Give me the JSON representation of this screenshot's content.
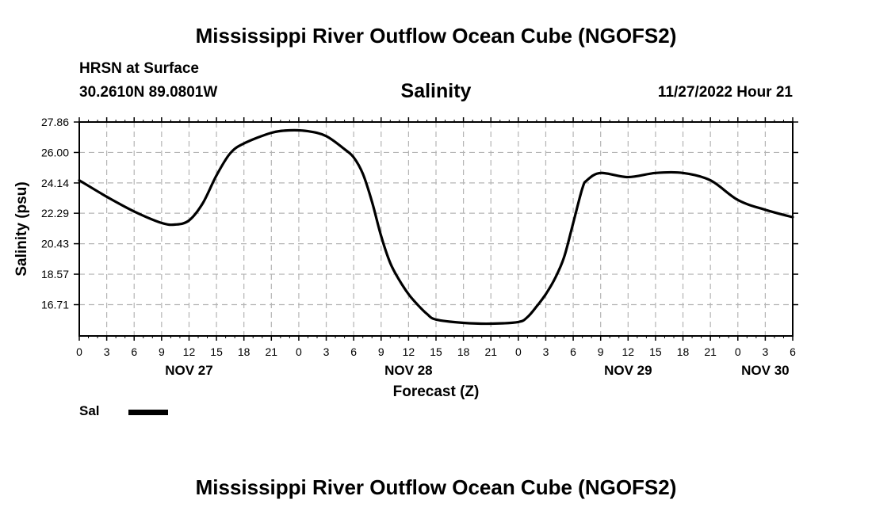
{
  "page": {
    "title_top": "Mississippi River Outflow Ocean Cube (NGOFS2)",
    "title_bottom": "Mississippi River Outflow Ocean Cube (NGOFS2)",
    "station": "HRSN at Surface",
    "coords": "30.2610N  89.0801W",
    "variable": "Salinity",
    "datetime": "11/27/2022 Hour 21"
  },
  "legend": {
    "label": "Sal",
    "color": "#000000"
  },
  "chart_data": {
    "type": "line",
    "title": "Salinity",
    "xlabel": "Forecast (Z)",
    "ylabel": "Salinity (psu)",
    "xlim": [
      0,
      78
    ],
    "ylim": [
      14.8,
      27.86
    ],
    "grid": true,
    "x_ticks": [
      0,
      3,
      6,
      9,
      12,
      15,
      18,
      21,
      24,
      27,
      30,
      33,
      36,
      39,
      42,
      45,
      48,
      51,
      54,
      57,
      60,
      63,
      66,
      69,
      72,
      75,
      78
    ],
    "x_tick_labels": [
      "0",
      "3",
      "6",
      "9",
      "12",
      "15",
      "18",
      "21",
      "0",
      "3",
      "6",
      "9",
      "12",
      "15",
      "18",
      "21",
      "0",
      "3",
      "6",
      "9",
      "12",
      "15",
      "18",
      "21",
      "0",
      "3",
      "6"
    ],
    "day_labels": [
      {
        "x": 12,
        "label": "NOV 27"
      },
      {
        "x": 36,
        "label": "NOV 28"
      },
      {
        "x": 60,
        "label": "NOV 29"
      },
      {
        "x": 75,
        "label": "NOV 30"
      }
    ],
    "y_ticks": [
      16.71,
      18.57,
      20.43,
      22.29,
      24.14,
      26.0,
      27.86
    ],
    "y_tick_labels": [
      "16.71",
      "18.57",
      "20.43",
      "22.29",
      "24.14",
      "26.00",
      "27.86"
    ],
    "series": [
      {
        "name": "Sal",
        "x": [
          0,
          3,
          6,
          9,
          10.5,
          12,
          13.5,
          15,
          16.5,
          18,
          21,
          23,
          25,
          27,
          29,
          30,
          31,
          32,
          33,
          34,
          35,
          36,
          37,
          38,
          39,
          42,
          45,
          48,
          49,
          50,
          51,
          52,
          53,
          54,
          55,
          55.5,
          57,
          60,
          63,
          66,
          69,
          72,
          75,
          78
        ],
        "values": [
          24.3,
          23.3,
          22.4,
          21.7,
          21.6,
          21.85,
          22.9,
          24.6,
          25.95,
          26.55,
          27.2,
          27.35,
          27.3,
          27.0,
          26.2,
          25.7,
          24.7,
          23.0,
          20.9,
          19.25,
          18.2,
          17.35,
          16.7,
          16.15,
          15.8,
          15.6,
          15.55,
          15.65,
          15.95,
          16.6,
          17.35,
          18.3,
          19.6,
          21.7,
          23.8,
          24.3,
          24.75,
          24.5,
          24.75,
          24.75,
          24.3,
          23.1,
          22.5,
          22.05
        ]
      }
    ]
  }
}
